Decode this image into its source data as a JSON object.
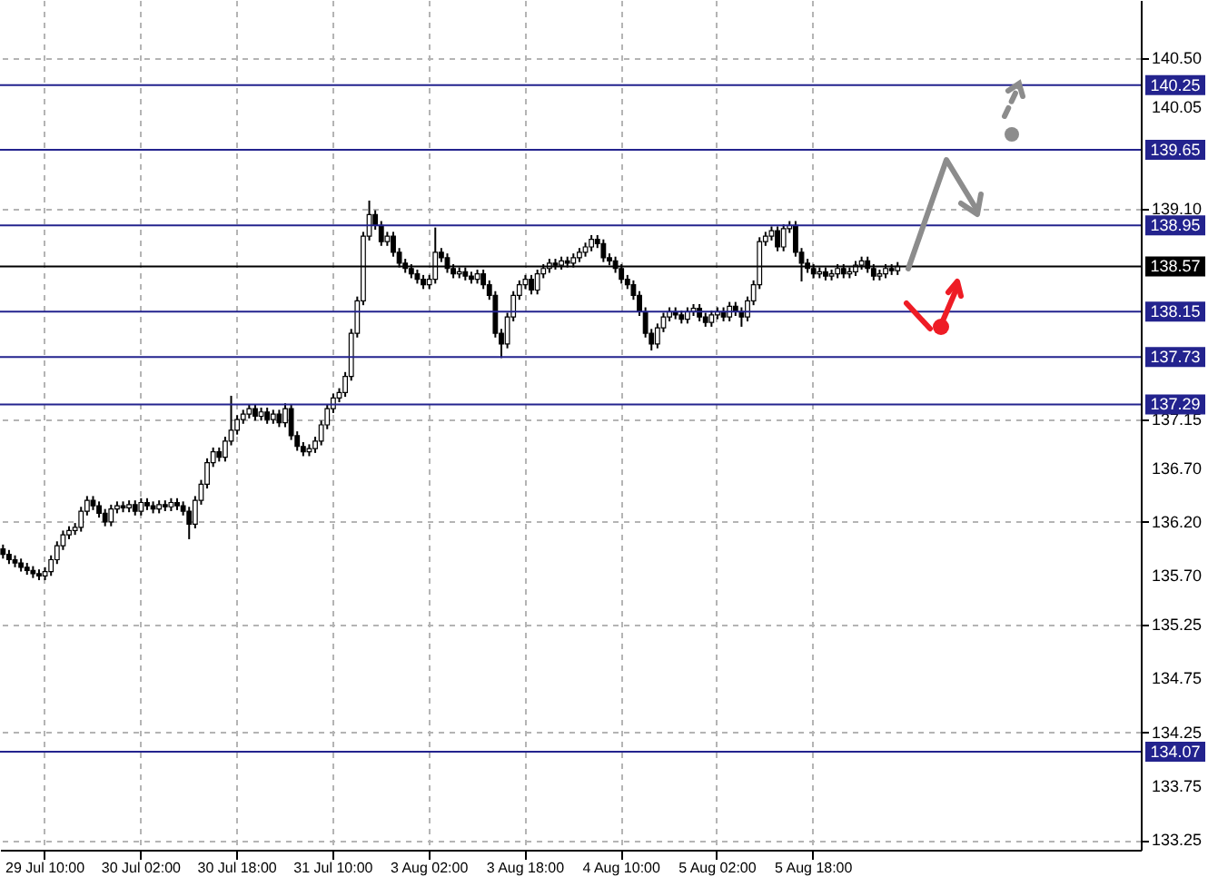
{
  "chart_data": {
    "type": "candlestick",
    "categories": [
      null,
      null,
      null,
      null,
      null,
      null,
      null,
      "29 Jul 10:00",
      null,
      null,
      null,
      null,
      null,
      null,
      null,
      null,
      null,
      null,
      null,
      null,
      null,
      null,
      null,
      "30 Jul 02:00",
      null,
      null,
      null,
      null,
      null,
      null,
      null,
      null,
      null,
      null,
      null,
      null,
      null,
      null,
      null,
      "30 Jul 18:00",
      null,
      null,
      null,
      null,
      null,
      null,
      null,
      null,
      null,
      null,
      null,
      null,
      null,
      null,
      null,
      "31 Jul 10:00",
      null,
      null,
      null,
      null,
      null,
      null,
      null,
      null,
      null,
      null,
      null,
      null,
      null,
      null,
      null,
      "3 Aug 02:00",
      null,
      null,
      null,
      null,
      null,
      null,
      null,
      null,
      null,
      null,
      null,
      null,
      null,
      null,
      null,
      "3 Aug 18:00",
      null,
      null,
      null,
      null,
      null,
      null,
      null,
      null,
      null,
      null,
      null,
      null,
      null,
      null,
      null,
      "4 Aug 10:00",
      null,
      null,
      null,
      null,
      null,
      null,
      null,
      null,
      null,
      null,
      null,
      null,
      null,
      null,
      null,
      "5 Aug 02:00",
      null,
      null,
      null,
      null,
      null,
      null,
      null,
      null,
      null,
      null,
      null,
      null,
      null,
      null,
      null,
      "5 Aug 18:00",
      null,
      null,
      null,
      null,
      null,
      null,
      null,
      null,
      null,
      null,
      null,
      null,
      null,
      null,
      null,
      null,
      null,
      null,
      null,
      null,
      null,
      null,
      null,
      null,
      null,
      null,
      null,
      null,
      null,
      null,
      null,
      null,
      null,
      null,
      null,
      null,
      null,
      null,
      null,
      null,
      null,
      null,
      null,
      null,
      null,
      null,
      null,
      null,
      null,
      null,
      null,
      null,
      null,
      null
    ],
    "ohlc": [
      [
        135.95,
        135.99,
        135.86,
        135.9
      ],
      [
        135.9,
        135.94,
        135.81,
        135.85
      ],
      [
        135.85,
        135.89,
        135.78,
        135.82
      ],
      [
        135.82,
        135.86,
        135.74,
        135.78
      ],
      [
        135.78,
        135.82,
        135.71,
        135.75
      ],
      [
        135.75,
        135.79,
        135.68,
        135.72
      ],
      [
        135.72,
        135.76,
        135.66,
        135.7
      ],
      [
        135.7,
        135.78,
        135.66,
        135.74
      ],
      [
        135.74,
        135.89,
        135.7,
        135.85
      ],
      [
        135.85,
        136.02,
        135.81,
        135.98
      ],
      [
        135.98,
        136.12,
        135.94,
        136.08
      ],
      [
        136.08,
        136.16,
        136.04,
        136.12
      ],
      [
        136.12,
        136.19,
        136.08,
        136.15
      ],
      [
        136.15,
        136.34,
        136.11,
        136.3
      ],
      [
        136.3,
        136.44,
        136.26,
        136.4
      ],
      [
        136.4,
        136.44,
        136.31,
        136.35
      ],
      [
        136.35,
        136.39,
        136.24,
        136.28
      ],
      [
        136.28,
        136.32,
        136.16,
        136.2
      ],
      [
        136.2,
        136.36,
        136.16,
        136.32
      ],
      [
        136.32,
        136.39,
        136.28,
        136.35
      ],
      [
        136.35,
        136.39,
        136.29,
        136.33
      ],
      [
        136.33,
        136.4,
        136.29,
        136.36
      ],
      [
        136.36,
        136.4,
        136.26,
        136.3
      ],
      [
        136.3,
        136.42,
        136.26,
        136.38
      ],
      [
        136.38,
        136.42,
        136.31,
        136.35
      ],
      [
        136.35,
        136.39,
        136.28,
        136.32
      ],
      [
        136.32,
        136.4,
        136.28,
        136.36
      ],
      [
        136.36,
        136.4,
        136.3,
        136.34
      ],
      [
        136.34,
        136.42,
        136.3,
        136.38
      ],
      [
        136.38,
        136.42,
        136.31,
        136.35
      ],
      [
        136.35,
        136.39,
        136.26,
        136.3
      ],
      [
        136.3,
        136.34,
        136.04,
        136.18
      ],
      [
        136.18,
        136.44,
        136.14,
        136.4
      ],
      [
        136.4,
        136.59,
        136.36,
        136.55
      ],
      [
        136.55,
        136.79,
        136.51,
        136.75
      ],
      [
        136.75,
        136.89,
        136.71,
        136.85
      ],
      [
        136.85,
        136.89,
        136.76,
        136.8
      ],
      [
        136.8,
        136.99,
        136.76,
        136.95
      ],
      [
        136.95,
        137.37,
        136.91,
        137.05
      ],
      [
        137.05,
        137.19,
        137.01,
        137.15
      ],
      [
        137.15,
        137.24,
        137.11,
        137.2
      ],
      [
        137.2,
        137.29,
        137.16,
        137.25
      ],
      [
        137.25,
        137.29,
        137.14,
        137.18
      ],
      [
        137.18,
        137.26,
        137.14,
        137.22
      ],
      [
        137.22,
        137.26,
        137.11,
        137.15
      ],
      [
        137.15,
        137.24,
        137.11,
        137.2
      ],
      [
        137.2,
        137.24,
        137.08,
        137.12
      ],
      [
        137.12,
        137.3,
        137.08,
        137.25
      ],
      [
        137.25,
        137.29,
        136.96,
        137.0
      ],
      [
        137.0,
        137.04,
        136.86,
        136.9
      ],
      [
        136.9,
        136.94,
        136.81,
        136.85
      ],
      [
        136.85,
        136.92,
        136.81,
        136.88
      ],
      [
        136.88,
        136.99,
        136.84,
        136.95
      ],
      [
        136.95,
        137.14,
        136.91,
        137.1
      ],
      [
        137.1,
        137.29,
        137.06,
        137.25
      ],
      [
        137.25,
        137.39,
        137.21,
        137.35
      ],
      [
        137.35,
        137.44,
        137.31,
        137.4
      ],
      [
        137.4,
        137.59,
        137.36,
        137.55
      ],
      [
        137.55,
        137.99,
        137.51,
        137.95
      ],
      [
        137.95,
        138.29,
        137.91,
        138.25
      ],
      [
        138.25,
        138.89,
        138.21,
        138.85
      ],
      [
        138.85,
        139.18,
        138.81,
        139.05
      ],
      [
        139.05,
        139.09,
        138.91,
        138.95
      ],
      [
        138.95,
        138.99,
        138.76,
        138.8
      ],
      [
        138.8,
        138.89,
        138.76,
        138.85
      ],
      [
        138.85,
        138.89,
        138.66,
        138.7
      ],
      [
        138.7,
        138.74,
        138.56,
        138.6
      ],
      [
        138.6,
        138.64,
        138.51,
        138.55
      ],
      [
        138.55,
        138.59,
        138.46,
        138.5
      ],
      [
        138.5,
        138.54,
        138.41,
        138.45
      ],
      [
        138.45,
        138.49,
        138.36,
        138.4
      ],
      [
        138.4,
        138.49,
        138.36,
        138.45
      ],
      [
        138.45,
        138.93,
        138.41,
        138.7
      ],
      [
        138.7,
        138.74,
        138.61,
        138.65
      ],
      [
        138.65,
        138.69,
        138.51,
        138.55
      ],
      [
        138.55,
        138.59,
        138.46,
        138.5
      ],
      [
        138.5,
        138.56,
        138.46,
        138.52
      ],
      [
        138.52,
        138.56,
        138.44,
        138.48
      ],
      [
        138.48,
        138.52,
        138.41,
        138.45
      ],
      [
        138.45,
        138.54,
        138.41,
        138.5
      ],
      [
        138.5,
        138.54,
        138.36,
        138.4
      ],
      [
        138.4,
        138.44,
        138.26,
        138.3
      ],
      [
        138.3,
        138.34,
        137.91,
        137.95
      ],
      [
        137.95,
        137.99,
        137.72,
        137.85
      ],
      [
        137.85,
        138.14,
        137.81,
        138.1
      ],
      [
        138.1,
        138.34,
        138.06,
        138.3
      ],
      [
        138.3,
        138.44,
        138.26,
        138.4
      ],
      [
        138.4,
        138.49,
        138.36,
        138.45
      ],
      [
        138.45,
        138.49,
        138.31,
        138.35
      ],
      [
        138.35,
        138.54,
        138.31,
        138.5
      ],
      [
        138.5,
        138.59,
        138.46,
        138.55
      ],
      [
        138.55,
        138.64,
        138.51,
        138.6
      ],
      [
        138.6,
        138.64,
        138.54,
        138.58
      ],
      [
        138.58,
        138.66,
        138.54,
        138.62
      ],
      [
        138.62,
        138.66,
        138.56,
        138.6
      ],
      [
        138.6,
        138.69,
        138.56,
        138.65
      ],
      [
        138.65,
        138.74,
        138.61,
        138.7
      ],
      [
        138.7,
        138.79,
        138.66,
        138.75
      ],
      [
        138.75,
        138.86,
        138.71,
        138.82
      ],
      [
        138.82,
        138.86,
        138.74,
        138.78
      ],
      [
        138.78,
        138.82,
        138.61,
        138.65
      ],
      [
        138.65,
        138.69,
        138.58,
        138.62
      ],
      [
        138.62,
        138.66,
        138.51,
        138.55
      ],
      [
        138.55,
        138.59,
        138.41,
        138.45
      ],
      [
        138.45,
        138.49,
        138.36,
        138.4
      ],
      [
        138.4,
        138.44,
        138.26,
        138.3
      ],
      [
        138.3,
        138.34,
        138.11,
        138.15
      ],
      [
        138.15,
        138.19,
        137.91,
        137.95
      ],
      [
        137.95,
        137.99,
        137.79,
        137.85
      ],
      [
        137.85,
        138.04,
        137.81,
        138.0
      ],
      [
        138.0,
        138.14,
        137.96,
        138.1
      ],
      [
        138.1,
        138.19,
        138.06,
        138.15
      ],
      [
        138.15,
        138.19,
        138.08,
        138.12
      ],
      [
        138.12,
        138.16,
        138.04,
        138.08
      ],
      [
        138.08,
        138.19,
        138.04,
        138.15
      ],
      [
        138.15,
        138.22,
        138.11,
        138.18
      ],
      [
        138.18,
        138.22,
        138.06,
        138.1
      ],
      [
        138.1,
        138.14,
        138.01,
        138.05
      ],
      [
        138.05,
        138.16,
        138.01,
        138.12
      ],
      [
        138.12,
        138.19,
        138.08,
        138.15
      ],
      [
        138.15,
        138.19,
        138.06,
        138.1
      ],
      [
        138.1,
        138.24,
        138.06,
        138.2
      ],
      [
        138.2,
        138.24,
        138.11,
        138.15
      ],
      [
        138.15,
        138.19,
        138.01,
        138.1
      ],
      [
        138.1,
        138.29,
        138.06,
        138.25
      ],
      [
        138.25,
        138.44,
        138.21,
        138.4
      ],
      [
        138.4,
        138.84,
        138.36,
        138.8
      ],
      [
        138.8,
        138.89,
        138.76,
        138.85
      ],
      [
        138.85,
        138.94,
        138.81,
        138.9
      ],
      [
        138.9,
        138.94,
        138.71,
        138.75
      ],
      [
        138.75,
        138.96,
        138.71,
        138.92
      ],
      [
        138.92,
        138.99,
        138.88,
        138.95
      ],
      [
        138.95,
        138.99,
        138.66,
        138.7
      ],
      [
        138.7,
        138.74,
        138.43,
        138.6
      ],
      [
        138.6,
        138.64,
        138.51,
        138.55
      ],
      [
        138.55,
        138.59,
        138.46,
        138.5
      ],
      [
        138.5,
        138.56,
        138.46,
        138.52
      ],
      [
        138.52,
        138.56,
        138.44,
        138.48
      ],
      [
        138.48,
        138.54,
        138.44,
        138.5
      ],
      [
        138.5,
        138.59,
        138.46,
        138.55
      ],
      [
        138.55,
        138.59,
        138.46,
        138.5
      ],
      [
        138.5,
        138.56,
        138.46,
        138.52
      ],
      [
        138.52,
        138.62,
        138.48,
        138.58
      ],
      [
        138.58,
        138.66,
        138.54,
        138.62
      ],
      [
        138.62,
        138.66,
        138.51,
        138.55
      ],
      [
        138.55,
        138.59,
        138.44,
        138.48
      ],
      [
        138.48,
        138.54,
        138.44,
        138.5
      ],
      [
        138.5,
        138.59,
        138.46,
        138.55
      ],
      [
        138.55,
        138.59,
        138.49,
        138.53
      ],
      [
        138.53,
        138.61,
        138.49,
        138.57
      ],
      null,
      null,
      null,
      null,
      null,
      null,
      null,
      null,
      null,
      null,
      null,
      null,
      null,
      null,
      null,
      null,
      null,
      null,
      null,
      null,
      null,
      null,
      null,
      null,
      null,
      null,
      null,
      null,
      null,
      null,
      null,
      null,
      null,
      null,
      null,
      null,
      null,
      null,
      null,
      null
    ],
    "ylim": [
      133.16,
      141.04
    ],
    "yticks": [
      {
        "value": 140.5,
        "label": "140.50"
      },
      {
        "value": 140.05,
        "label": "140.05"
      },
      {
        "value": 139.1,
        "label": "139.10"
      },
      {
        "value": 138.6,
        "label": null
      },
      {
        "value": 137.15,
        "label": "137.15"
      },
      {
        "value": 136.7,
        "label": "136.70"
      },
      {
        "value": 136.2,
        "label": "136.20"
      },
      {
        "value": 135.7,
        "label": "135.70"
      },
      {
        "value": 135.25,
        "label": "135.25"
      },
      {
        "value": 134.75,
        "label": "134.75"
      },
      {
        "value": 134.25,
        "label": "134.25"
      },
      {
        "value": 133.75,
        "label": "133.75"
      },
      {
        "value": 133.25,
        "label": "133.25"
      }
    ],
    "ref_lines": [
      {
        "axis": "y",
        "value": 140.25,
        "label": "140.25",
        "color": "#23238e"
      },
      {
        "axis": "y",
        "value": 139.65,
        "label": "139.65",
        "color": "#23238e"
      },
      {
        "axis": "y",
        "value": 138.95,
        "label": "138.95",
        "color": "#23238e"
      },
      {
        "axis": "y",
        "value": 138.57,
        "label": "138.57",
        "color": "#000000"
      },
      {
        "axis": "y",
        "value": 138.15,
        "label": "138.15",
        "color": "#23238e"
      },
      {
        "axis": "y",
        "value": 137.73,
        "label": "137.73",
        "color": "#23238e"
      },
      {
        "axis": "y",
        "value": 137.29,
        "label": "137.29",
        "color": "#23238e"
      },
      {
        "axis": "y",
        "value": 134.07,
        "label": "134.07",
        "color": "#23238e"
      }
    ],
    "grid": true
  }
}
